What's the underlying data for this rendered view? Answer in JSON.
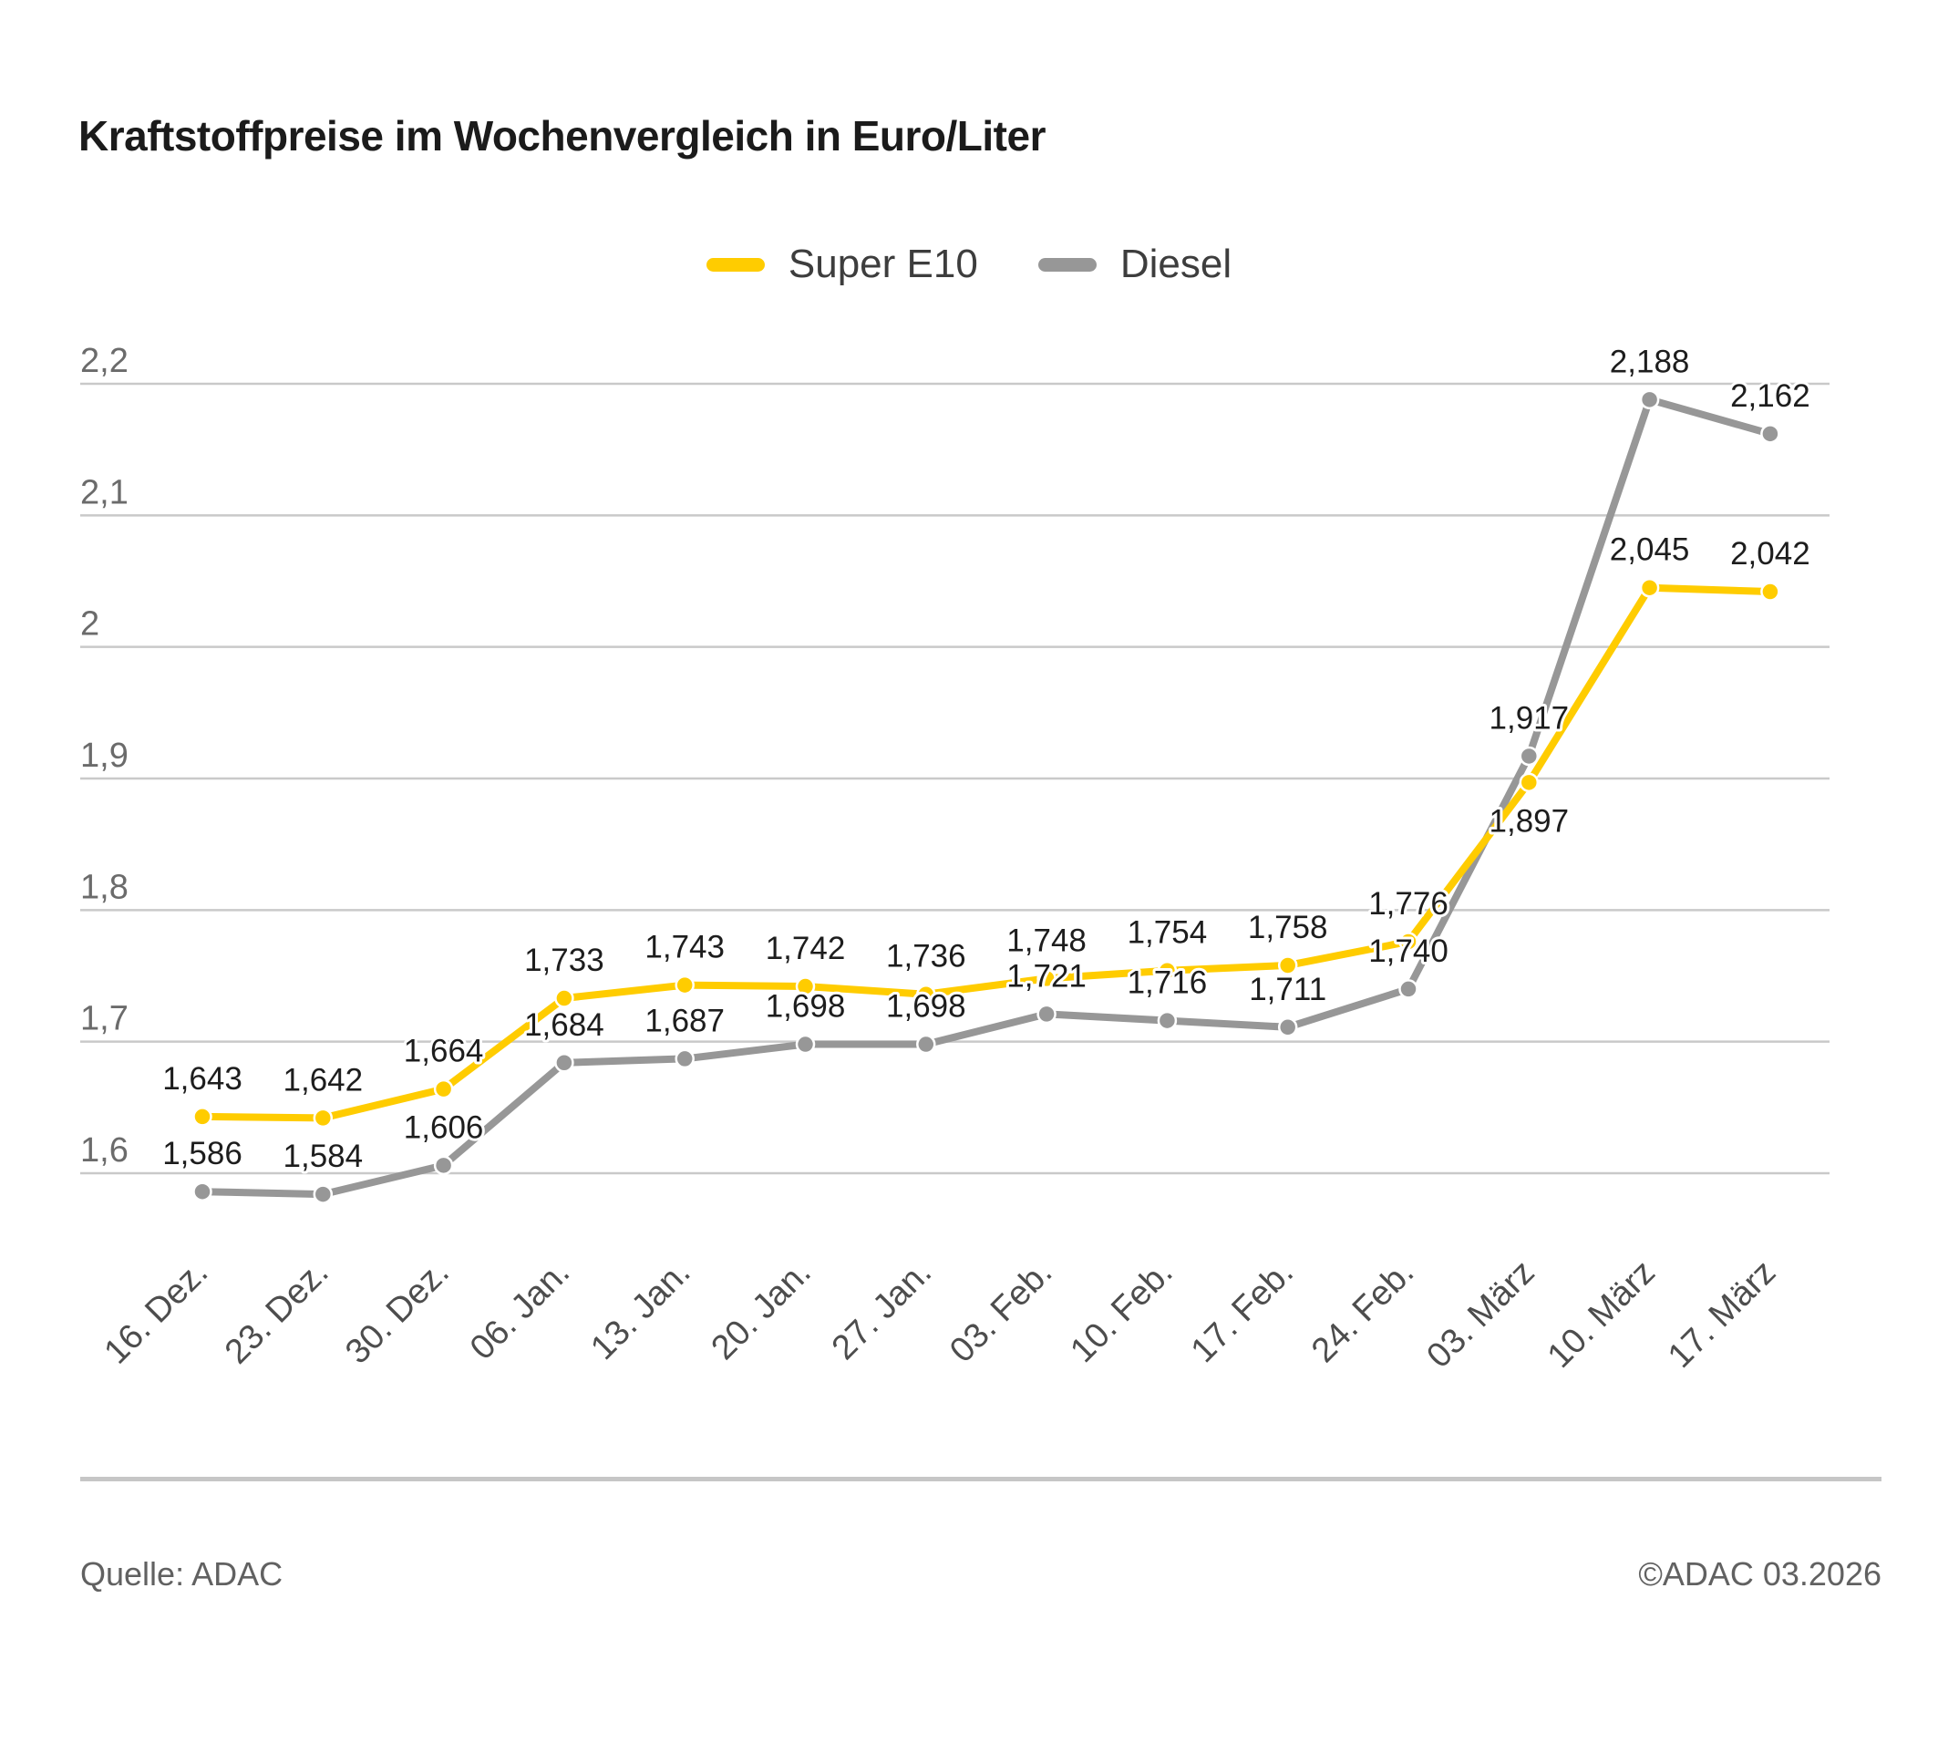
{
  "page": {
    "title": "Kraftstoffpreise im Wochenvergleich in Euro/Liter"
  },
  "footer": {
    "source": "Quelle: ADAC",
    "copyright": "©ADAC 03.2026"
  },
  "chart_data": {
    "type": "line",
    "title": "Kraftstoffpreise im Wochenvergleich in Euro/Liter",
    "unit": "Euro/Liter",
    "categories": [
      "16. Dez.",
      "23. Dez.",
      "30. Dez.",
      "06. Jan.",
      "13. Jan.",
      "20. Jan.",
      "27. Jan.",
      "03. Feb.",
      "10. Feb.",
      "17. Feb.",
      "24. Feb.",
      "03. März",
      "10. März",
      "17. März"
    ],
    "series": [
      {
        "name": "Super E10",
        "color": "#FFCC00",
        "values": [
          1.643,
          1.642,
          1.664,
          1.733,
          1.743,
          1.742,
          1.736,
          1.748,
          1.754,
          1.758,
          1.776,
          1.897,
          2.045,
          2.042
        ]
      },
      {
        "name": "Diesel",
        "color": "#979797",
        "values": [
          1.586,
          1.584,
          1.606,
          1.684,
          1.687,
          1.698,
          1.698,
          1.721,
          1.716,
          1.711,
          1.74,
          1.917,
          2.188,
          2.162
        ]
      }
    ],
    "yticks": [
      {
        "label": "2,2",
        "value": 2.2
      },
      {
        "label": "2,1",
        "value": 2.1
      },
      {
        "label": "2",
        "value": 2.0
      },
      {
        "label": "1,9",
        "value": 1.9
      },
      {
        "label": "1,8",
        "value": 1.8
      },
      {
        "label": "1,7",
        "value": 1.7
      },
      {
        "label": "1,6",
        "value": 1.6
      }
    ],
    "ylim": [
      1.55,
      2.25
    ],
    "grid": true,
    "legend_position": "top",
    "decimal_separator": ",",
    "value_decimals": 3,
    "layout_hints": {
      "label_below_indices": [
        [
          11
        ],
        []
      ],
      "x_label_rotation": -45
    }
  }
}
